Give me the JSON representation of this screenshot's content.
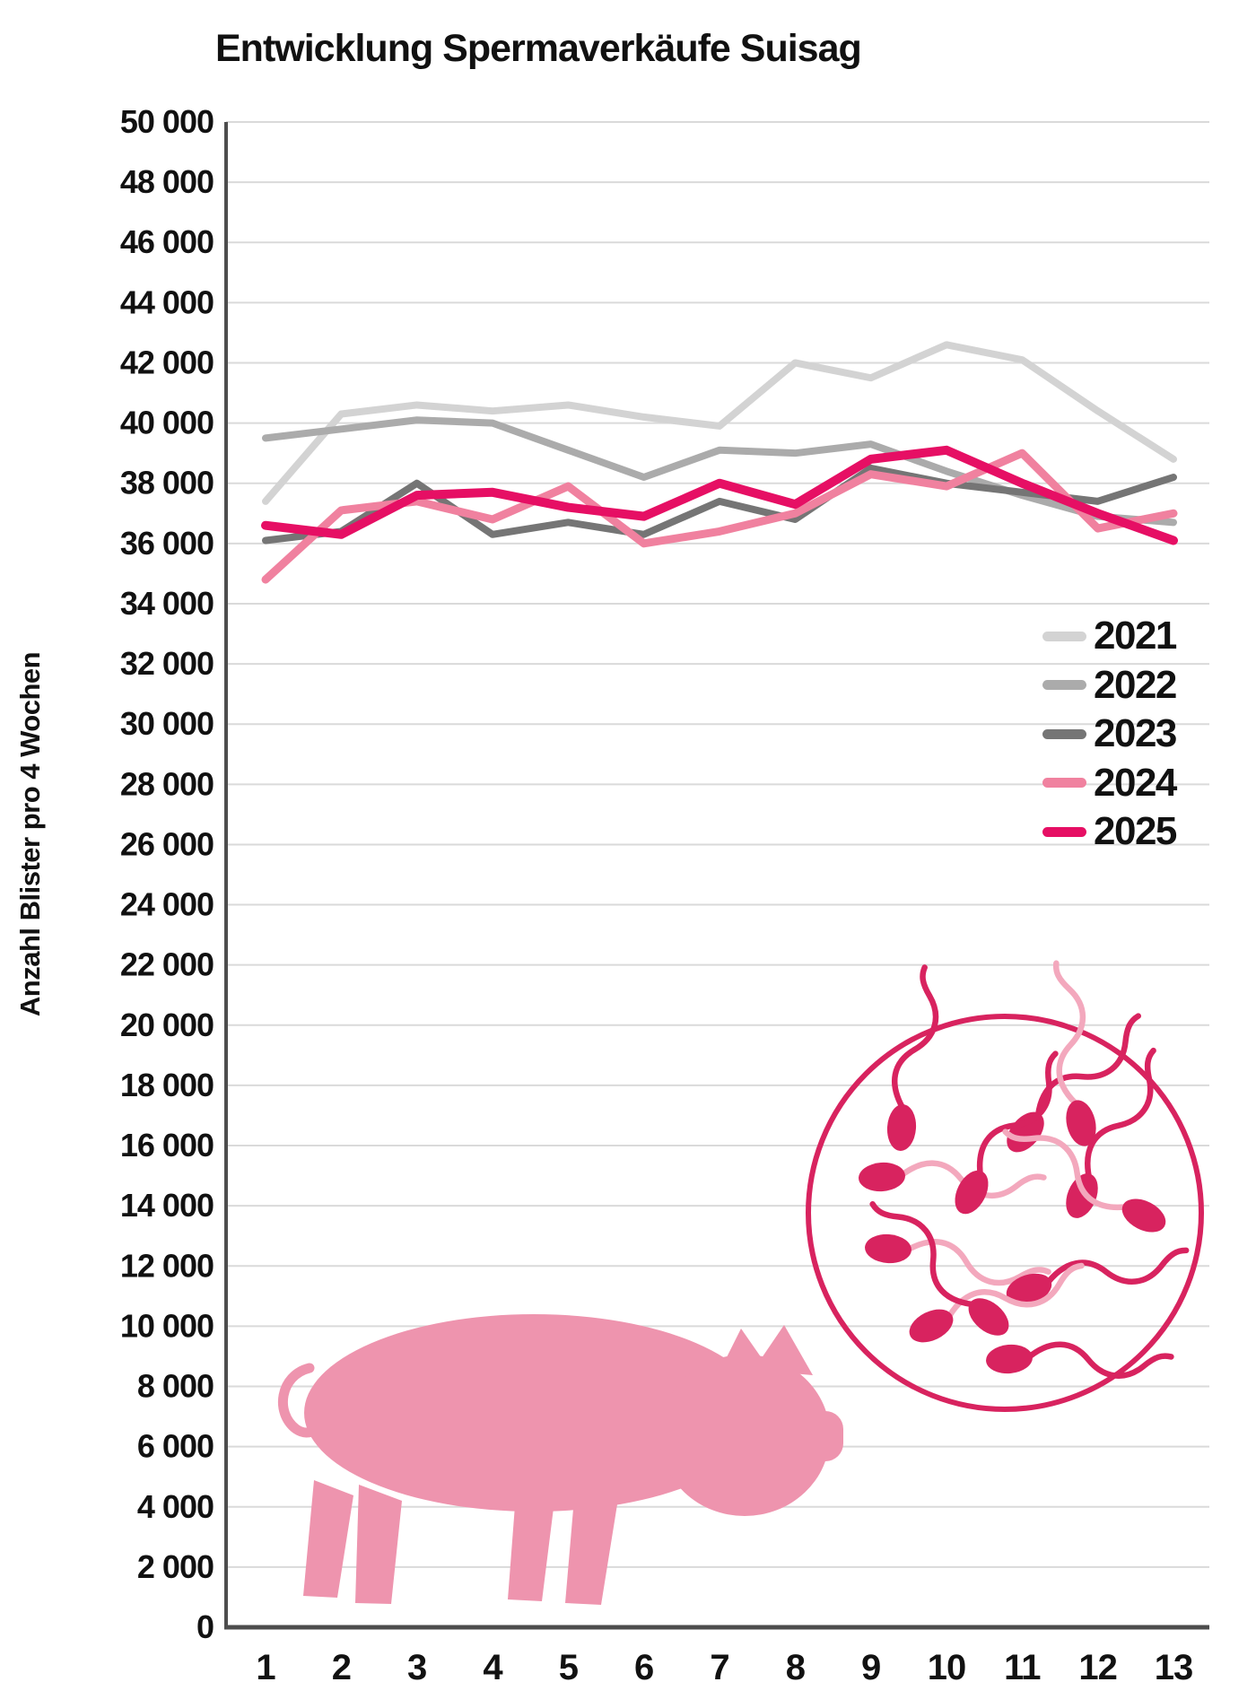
{
  "chart_data": {
    "type": "line",
    "title": "Entwicklung Spermaverkäufe Suisag",
    "xlabel": "",
    "ylabel": "Anzahl Blister pro 4 Wochen",
    "ylim": [
      0,
      50000
    ],
    "ytick_step": 2000,
    "grid": true,
    "legend_position": "right-middle",
    "categories": [
      1,
      2,
      3,
      4,
      5,
      6,
      7,
      8,
      9,
      10,
      11,
      12,
      13
    ],
    "x_tick_labels": [
      "1",
      "2",
      "3",
      "4",
      "5",
      "6",
      "7",
      "8",
      "9",
      "10",
      "11",
      "12",
      "13"
    ],
    "y_tick_labels": [
      "0",
      "2 000",
      "4 000",
      "6 000",
      "8 000",
      "10 000",
      "12 000",
      "14 000",
      "16 000",
      "18 000",
      "20 000",
      "22 000",
      "24 000",
      "26 000",
      "28 000",
      "30 000",
      "32 000",
      "34 000",
      "36 000",
      "38 000",
      "40 000",
      "42 000",
      "44 000",
      "46 000",
      "48 000",
      "50 000"
    ],
    "series": [
      {
        "name": "2021",
        "color": "#d3d3d3",
        "values": [
          37400,
          40300,
          40600,
          40400,
          40600,
          40200,
          39900,
          42000,
          41500,
          42600,
          42100,
          40400,
          38800
        ]
      },
      {
        "name": "2022",
        "color": "#ababab",
        "values": [
          39500,
          39800,
          40100,
          40000,
          39100,
          38200,
          39100,
          39000,
          39300,
          38400,
          37600,
          36900,
          36700
        ]
      },
      {
        "name": "2023",
        "color": "#757575",
        "values": [
          36100,
          36400,
          38000,
          36300,
          36700,
          36300,
          37400,
          36800,
          38500,
          38000,
          37700,
          37400,
          38200
        ]
      },
      {
        "name": "2024",
        "color": "#f0819f",
        "values": [
          34800,
          37100,
          37400,
          36800,
          37900,
          36000,
          36400,
          37000,
          38300,
          37900,
          39000,
          36500,
          37000
        ]
      },
      {
        "name": "2025",
        "color": "#e60f64",
        "values": [
          36600,
          36300,
          37600,
          37700,
          37200,
          36900,
          38000,
          37300,
          38800,
          39100,
          38000,
          37000,
          36100
        ]
      }
    ],
    "decorations": [
      "pig-silhouette",
      "sperm-cells-microscope-circle"
    ]
  },
  "colors": {
    "grid": "#dadada",
    "axis": "#4d4d4d",
    "text": "#111111",
    "pig": "#ee94ae",
    "sperm": "#d8235f",
    "sperm_tail_light": "#f3a8bd",
    "circle_outline": "#d8235f"
  }
}
